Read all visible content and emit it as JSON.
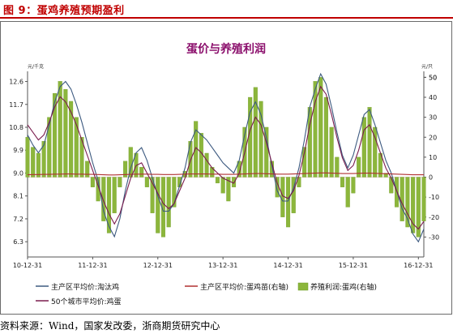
{
  "caption": "图 9：蛋鸡养殖预期盈利",
  "source": "资料来源：Wind，国家发改委，浙商期货研究中心",
  "colors": {
    "caption": "#c00000",
    "title": "#8b0f6c",
    "taotai": "#3d5a80",
    "chuji": "#b03030",
    "profit": "#8cb63c",
    "egg": "#7a1c4e"
  },
  "chart_data": {
    "type": "line",
    "title": "蛋价与养殖利润",
    "left_unit": "元/千克",
    "right_unit": "元/只",
    "left_ticks": [
      "6.3",
      "7.2",
      "8.1",
      "9.0",
      "9.9",
      "10.8",
      "11.7",
      "12.6"
    ],
    "right_ticks": [
      "-30",
      "-20",
      "-10",
      "0",
      "10",
      "20",
      "30",
      "40",
      "50"
    ],
    "ylim_left": [
      5.7,
      13.0
    ],
    "ylim_right": [
      -40,
      53
    ],
    "x_ticks": [
      "10-12-31",
      "11-12-31",
      "12-12-31",
      "13-12-31",
      "14-12-31",
      "15-12-31",
      "16-12-31"
    ],
    "xlim": [
      0,
      73
    ],
    "series": [
      {
        "name": "主产区平均价:淘汰鸡",
        "axis": "left",
        "kind": "line",
        "values": [
          10.5,
          10.1,
          9.8,
          10.1,
          10.9,
          11.8,
          12.4,
          12.6,
          12.3,
          11.7,
          11.0,
          10.2,
          9.4,
          8.7,
          7.5,
          6.9,
          6.5,
          7.2,
          8.3,
          9.2,
          9.8,
          10.0,
          9.5,
          8.8,
          8.1,
          7.5,
          7.5,
          7.8,
          8.5,
          9.2,
          10.2,
          10.7,
          10.5,
          10.3,
          10.0,
          9.7,
          9.4,
          9.2,
          9.0,
          9.5,
          10.5,
          11.4,
          11.8,
          11.3,
          10.4,
          9.3,
          8.3,
          7.9,
          7.9,
          8.4,
          9.2,
          10.3,
          11.6,
          12.3,
          12.9,
          12.5,
          11.6,
          10.6,
          9.7,
          9.2,
          9.7,
          10.5,
          11.3,
          11.5,
          10.9,
          10.2,
          9.5,
          9.0,
          8.3,
          7.6,
          7.2,
          6.6,
          6.3,
          6.8
        ]
      },
      {
        "name": "主产区平均价:蛋鸡苗(右轴)",
        "axis": "right",
        "kind": "line",
        "values": [
          1.2,
          1.3,
          1.3,
          1.4,
          1.4,
          1.5,
          1.5,
          1.6,
          1.6,
          1.5,
          1.5,
          1.4,
          1.4,
          1.3,
          1.2,
          1.1,
          1.1,
          1.2,
          1.3,
          1.4,
          1.5,
          1.5,
          1.5,
          1.4,
          1.4,
          1.3,
          1.3,
          1.3,
          1.4,
          1.5,
          1.6,
          1.6,
          1.6,
          1.6,
          1.5,
          1.5,
          1.4,
          1.4,
          1.4,
          1.5,
          1.6,
          1.7,
          1.8,
          1.8,
          1.7,
          1.6,
          1.5,
          1.5,
          1.5,
          1.6,
          1.7,
          1.8,
          1.9,
          2.0,
          2.1,
          2.1,
          2.0,
          1.9,
          1.8,
          1.8,
          1.8,
          1.9,
          2.0,
          2.0,
          1.9,
          1.8,
          1.7,
          1.6,
          1.5,
          1.4,
          1.3,
          1.2,
          1.2,
          1.2
        ]
      },
      {
        "name": "养殖利润:蛋鸡(右轴)",
        "axis": "right",
        "kind": "bar",
        "values": [
          20,
          15,
          12,
          18,
          30,
          42,
          48,
          44,
          38,
          30,
          20,
          8,
          -5,
          -12,
          -22,
          -28,
          -18,
          -5,
          8,
          15,
          12,
          5,
          -5,
          -18,
          -28,
          -30,
          -25,
          -15,
          -5,
          3,
          18,
          28,
          22,
          12,
          5,
          -3,
          -8,
          -12,
          -5,
          8,
          25,
          40,
          45,
          38,
          25,
          8,
          -10,
          -20,
          -25,
          -18,
          -5,
          15,
          35,
          48,
          50,
          40,
          25,
          10,
          -5,
          -15,
          -8,
          10,
          30,
          35,
          25,
          12,
          2,
          -8,
          -15,
          -22,
          -25,
          -28,
          -30,
          -22
        ]
      },
      {
        "name": "50个城市平均价:鸡蛋",
        "axis": "left",
        "kind": "line",
        "values": [
          10.9,
          10.6,
          10.3,
          10.5,
          11.0,
          11.6,
          12.0,
          11.8,
          11.4,
          10.9,
          10.3,
          9.7,
          9.1,
          8.5,
          7.9,
          7.4,
          7.0,
          7.4,
          8.1,
          8.8,
          9.3,
          9.4,
          9.0,
          8.6,
          8.2,
          7.8,
          7.6,
          7.8,
          8.3,
          8.8,
          9.5,
          10.0,
          9.8,
          9.5,
          9.2,
          9.0,
          8.8,
          8.7,
          8.6,
          9.0,
          9.8,
          10.7,
          11.2,
          10.9,
          10.2,
          9.4,
          8.6,
          8.1,
          8.0,
          8.3,
          8.9,
          9.8,
          10.9,
          11.8,
          12.4,
          12.1,
          11.3,
          10.4,
          9.6,
          9.1,
          9.3,
          9.9,
          10.7,
          10.9,
          10.4,
          9.8,
          9.2,
          8.8,
          8.3,
          7.8,
          7.4,
          7.0,
          6.8,
          7.1
        ]
      }
    ],
    "legend": [
      {
        "label": "主产区平均价:淘汰鸡",
        "swatch": "line",
        "color_key": "taotai"
      },
      {
        "label": "主产区平均价:蛋鸡苗(右轴)",
        "swatch": "line",
        "color_key": "chuji"
      },
      {
        "label": "养殖利润:蛋鸡(右轴)",
        "swatch": "box",
        "color_key": "profit"
      },
      {
        "label": "50个城市平均价:鸡蛋",
        "swatch": "line",
        "color_key": "egg"
      }
    ],
    "legend_position": "bottom",
    "grid": false
  }
}
